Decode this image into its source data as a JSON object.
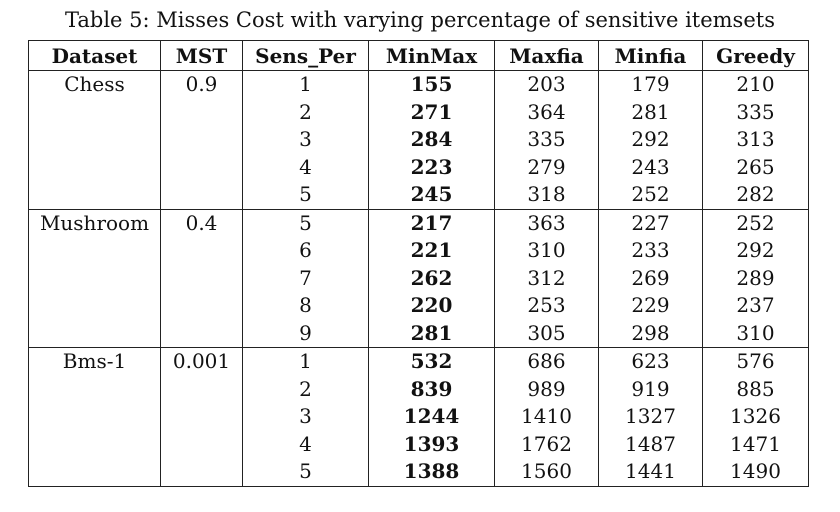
{
  "caption": "Table 5: Misses Cost with varying percentage of sensitive itemsets",
  "table": {
    "headers": [
      "Dataset",
      "MST",
      "Sens_Per",
      "MinMax",
      "Maxfia",
      "Minfia",
      "Greedy"
    ],
    "groups": [
      {
        "dataset": "Chess",
        "mst": "0.9",
        "rows": [
          [
            "1",
            "155",
            "203",
            "179",
            "210"
          ],
          [
            "2",
            "271",
            "364",
            "281",
            "335"
          ],
          [
            "3",
            "284",
            "335",
            "292",
            "313"
          ],
          [
            "4",
            "223",
            "279",
            "243",
            "265"
          ],
          [
            "5",
            "245",
            "318",
            "252",
            "282"
          ]
        ]
      },
      {
        "dataset": "Mushroom",
        "mst": "0.4",
        "rows": [
          [
            "5",
            "217",
            "363",
            "227",
            "252"
          ],
          [
            "6",
            "221",
            "310",
            "233",
            "292"
          ],
          [
            "7",
            "262",
            "312",
            "269",
            "289"
          ],
          [
            "8",
            "220",
            "253",
            "229",
            "237"
          ],
          [
            "9",
            "281",
            "305",
            "298",
            "310"
          ]
        ]
      },
      {
        "dataset": "Bms-1",
        "mst": "0.001",
        "rows": [
          [
            "1",
            "532",
            "686",
            "623",
            "576"
          ],
          [
            "2",
            "839",
            "989",
            "919",
            "885"
          ],
          [
            "3",
            "1244",
            "1410",
            "1327",
            "1326"
          ],
          [
            "4",
            "1393",
            "1762",
            "1487",
            "1471"
          ],
          [
            "5",
            "1388",
            "1560",
            "1441",
            "1490"
          ]
        ]
      }
    ],
    "bold_column": "MinMax"
  }
}
